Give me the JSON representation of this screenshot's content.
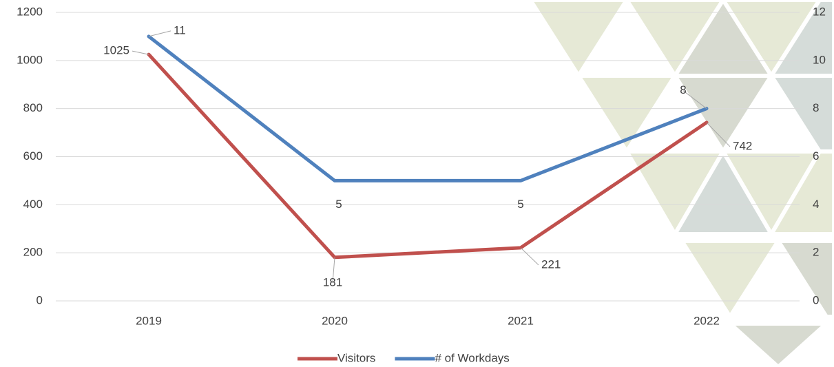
{
  "chart_data": {
    "type": "line",
    "categories": [
      "2019",
      "2020",
      "2021",
      "2022"
    ],
    "series": [
      {
        "name": "Visitors",
        "color": "#c0504d",
        "values": [
          1025,
          181,
          221,
          742
        ]
      },
      {
        "name": "# of Workdays",
        "color": "#4f81bd",
        "values": [
          11,
          5,
          5,
          8
        ],
        "axis": "y2"
      }
    ],
    "ylim": [
      0,
      1200
    ],
    "yticks": [
      0,
      200,
      400,
      600,
      800,
      1000,
      1200
    ],
    "y2lim": [
      0,
      12
    ],
    "y2ticks": [
      0,
      2,
      4,
      6,
      8,
      10,
      12
    ],
    "grid": true,
    "legend": "bottom"
  }
}
